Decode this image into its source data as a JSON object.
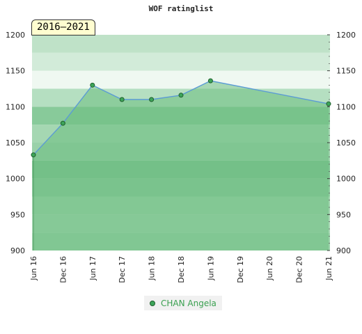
{
  "chart_data": {
    "type": "area",
    "title": "WOF ratinglist",
    "period": "2016–2021",
    "ylim": [
      900,
      1200
    ],
    "yticks": [
      900,
      950,
      1000,
      1050,
      1100,
      1150,
      1200
    ],
    "xticks": [
      "Jun 16",
      "Dec 16",
      "Jun 17",
      "Dec 17",
      "Jun 18",
      "Dec 18",
      "Jun 19",
      "Dec 19",
      "Jun 20",
      "Dec 20",
      "Jun 21"
    ],
    "series": [
      {
        "name": "CHAN Angela",
        "x": [
          "Jun 16",
          "Dec 16",
          "Jun 17",
          "Dec 17",
          "Jun 18",
          "Dec 18",
          "Jun 19",
          "Jun 21"
        ],
        "values": [
          1033,
          1077,
          1130,
          1110,
          1110,
          1116,
          1136,
          1104
        ]
      }
    ],
    "legend": "bottom-center",
    "colors": {
      "area_fill": "#6bbd80",
      "line": "#5b9bd5",
      "marker": "#3da55a",
      "band_light": "#cfe9d7",
      "band_dark": "#a9d8b6"
    }
  }
}
